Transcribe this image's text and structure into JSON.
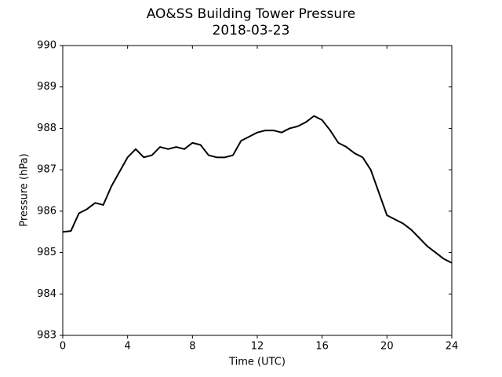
{
  "chart_data": {
    "type": "line",
    "title": "AO&SS Building Tower Pressure",
    "subtitle": "2018-03-23",
    "x_label": "Time (UTC)",
    "y_label": "Pressure (hPa)",
    "x": [
      0,
      0.5,
      1,
      1.5,
      2,
      2.5,
      3,
      3.5,
      4,
      4.5,
      5,
      5.5,
      6,
      6.5,
      7,
      7.5,
      8,
      8.5,
      9,
      9.5,
      10,
      10.5,
      11,
      11.5,
      12,
      12.5,
      13,
      13.5,
      14,
      14.5,
      15,
      15.5,
      16,
      16.5,
      17,
      17.5,
      18,
      18.5,
      19,
      19.5,
      20,
      20.5,
      21,
      21.5,
      22,
      22.5,
      23,
      23.5,
      24
    ],
    "series": [
      {
        "color": "#000000",
        "values": [
          985.5,
          985.52,
          985.95,
          986.05,
          986.2,
          986.15,
          986.6,
          986.95,
          987.3,
          987.5,
          987.3,
          987.35,
          987.55,
          987.5,
          987.55,
          987.5,
          987.65,
          987.6,
          987.35,
          987.3,
          987.3,
          987.35,
          987.7,
          987.8,
          987.9,
          987.95,
          987.95,
          987.9,
          988.0,
          988.05,
          988.15,
          988.3,
          988.2,
          987.95,
          987.65,
          987.55,
          987.4,
          987.3,
          987.0,
          986.45,
          985.9,
          985.8,
          985.7,
          985.55,
          985.35,
          985.15,
          985.0,
          984.85,
          984.75
        ]
      }
    ],
    "xlim": [
      0,
      24
    ],
    "xticks": [
      0,
      4,
      8,
      12,
      16,
      20,
      24
    ],
    "ylim": [
      983,
      990
    ],
    "yticks": [
      983,
      984,
      985,
      986,
      987,
      988,
      989,
      990
    ],
    "grid": false
  }
}
